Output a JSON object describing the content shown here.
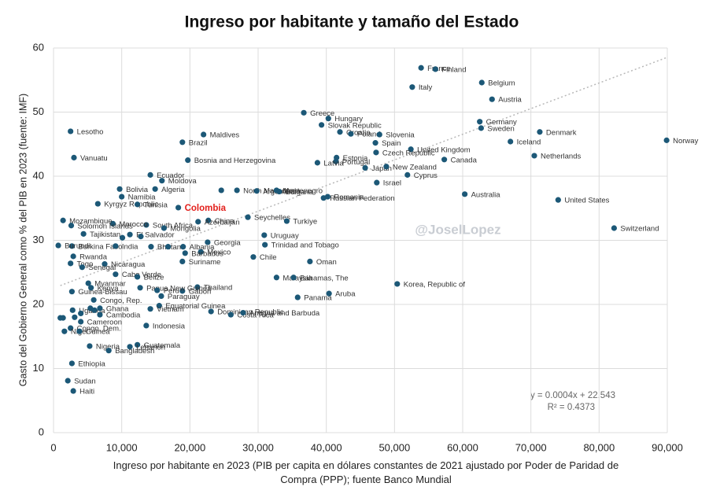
{
  "chart_data": {
    "type": "scatter",
    "title": "Ingreso por habitante y tamaño del Estado",
    "x_label": "Ingreso por habitante en 2023 (PIB per capita en dólares constantes de 2021 ajustado por Poder de Paridad de Compra (PPP); fuente Banco Mundial",
    "y_label": "Gasto del Gobierno General como % del PIB en 2023 (fuente: IMF)",
    "watermark": "@JoselLopez",
    "color": "#1c5877",
    "label_color": "#333333",
    "highlight": "Colombia",
    "highlight_color": "#e3201c",
    "grid": true,
    "xlim": [
      0,
      90000
    ],
    "ylim": [
      0,
      60
    ],
    "xticks": [
      0,
      {
        "value": 10000,
        "label": "10,000"
      },
      {
        "value": 20000,
        "label": "20,000"
      },
      {
        "value": 30000,
        "label": "30,000"
      },
      {
        "value": 40000,
        "label": "40,000"
      },
      {
        "value": 50000,
        "label": "50,000"
      },
      {
        "value": 60000,
        "label": "60,000"
      },
      {
        "value": 70000,
        "label": "70,000"
      },
      {
        "value": 80000,
        "label": "80,000"
      },
      {
        "value": 90000,
        "label": "90,000"
      }
    ],
    "yticks": [
      0,
      10,
      20,
      30,
      40,
      50,
      60
    ],
    "trendline": {
      "slope": 0.0004,
      "intercept": 22.543,
      "equation": "y = 0.0004x + 22.543",
      "r2": "R² = 0.4373"
    },
    "labels": [
      "France",
      "Finland",
      "Italy",
      "Belgium",
      "Austria",
      "Greece",
      "Hungary",
      "Slovak Republic",
      "Croatia",
      "Poland",
      "Slovenia",
      "Spain",
      "Germany",
      "Sweden",
      "Iceland",
      "Denmark",
      "Norway",
      "Netherlands",
      "United Kingdom",
      "Czech Republic",
      "Estonia",
      "Portugal",
      "Latvia",
      "Canada",
      "Japan",
      "New Zealand",
      "Cyprus",
      "Israel",
      "Australia",
      "United States",
      "Switzerland",
      "Romania",
      "Russian Federation",
      "North Macedonia",
      "Argentina",
      "Montenegro",
      "Bulgaria",
      "Seychelles",
      "Turkiye",
      "Uruguay",
      "Trinidad and Tobago",
      "Chile",
      "Oman",
      "Malaysia",
      "Bahamas, The",
      "Panama",
      "Aruba",
      "Korea, Republic of",
      "Dominican Republic",
      "Costa Rica",
      "Antigua and Barbuda",
      "Thailand",
      "Gabon",
      "Georgia",
      "Mexico",
      "Albania",
      "Barbados",
      "Suriname",
      "Brazil",
      "Maldives",
      "Bosnia and Herzegovina",
      "Ecuador",
      "Moldova",
      "Algeria",
      "Bolivia",
      "Namibia",
      "Kyrgyz Republic",
      "Tunisia",
      "Colombia",
      "China",
      "Azerbaijan",
      "South Africa",
      "Mongolia",
      "Morocco",
      "Mozambique",
      "Solomon Islands",
      "Tajikistan",
      "El Salvador",
      "Burkina Faso",
      "India",
      "Bhutan",
      "Lesotho",
      "Vanuatu",
      "Rwanda",
      "Togo",
      "Nicaragua",
      "Senegal",
      "Cabo Verde",
      "Belize",
      "Myanmar",
      "Kenya",
      "Papua New Guinea",
      "Peru",
      "Paraguay",
      "Congo, Rep.",
      "Equatorial Guinea",
      "Vietnam",
      "Uganda",
      "Cambodia",
      "Ghana",
      "Cameroon",
      "Indonesia",
      "Congo, Dem.",
      "Niger",
      "Guinea",
      "Nigeria",
      "Guatemala",
      "Lebanon",
      "Bangladesh",
      "Ethiopia",
      "Sudan",
      "Haiti",
      "Burundi",
      "Guinea-Bissau",
      null,
      null,
      null,
      null,
      null,
      null,
      null,
      null,
      null,
      null
    ],
    "x": [
      53900,
      56000,
      52600,
      62800,
      64300,
      36700,
      40300,
      39300,
      42000,
      43600,
      47800,
      47200,
      62500,
      62700,
      67000,
      71300,
      89900,
      70500,
      52400,
      47300,
      41500,
      41400,
      38700,
      57300,
      45700,
      48800,
      51900,
      47400,
      60300,
      74000,
      82200,
      40200,
      39600,
      26900,
      29800,
      32700,
      33100,
      28500,
      34200,
      30900,
      31000,
      29300,
      37600,
      32700,
      35200,
      35800,
      40400,
      50400,
      23100,
      26000,
      27800,
      21100,
      18900,
      22600,
      21600,
      19000,
      19300,
      18900,
      18900,
      22000,
      19700,
      14200,
      15900,
      14900,
      9700,
      10000,
      6500,
      12300,
      18300,
      22700,
      21200,
      13600,
      16200,
      8700,
      1400,
      2600,
      4400,
      11200,
      2700,
      9100,
      14300,
      2500,
      3000,
      2900,
      2500,
      7500,
      4200,
      9100,
      12300,
      5100,
      5500,
      12700,
      15200,
      15800,
      5900,
      15500,
      14200,
      2800,
      6800,
      6800,
      4000,
      13600,
      2500,
      1600,
      3800,
      5300,
      12300,
      11200,
      8100,
      2700,
      2100,
      2900,
      700,
      2700,
      1000,
      1400,
      3100,
      4000,
      5400,
      6000,
      10100,
      12800,
      16800,
      24600
    ],
    "values": [
      56.9,
      56.7,
      53.9,
      54.6,
      52.0,
      49.9,
      49.0,
      48.0,
      46.9,
      46.6,
      46.5,
      45.2,
      48.5,
      47.5,
      45.4,
      46.9,
      45.6,
      43.2,
      44.2,
      43.7,
      42.9,
      42.3,
      42.1,
      42.6,
      41.3,
      41.5,
      40.2,
      39.0,
      37.2,
      36.3,
      31.9,
      36.8,
      36.6,
      37.8,
      37.7,
      37.8,
      37.6,
      33.6,
      33.0,
      30.8,
      29.3,
      27.4,
      26.7,
      24.2,
      24.2,
      21.1,
      21.7,
      23.2,
      18.9,
      18.4,
      18.7,
      22.7,
      22.1,
      29.7,
      28.2,
      29.0,
      28.0,
      26.7,
      45.3,
      46.5,
      42.5,
      40.2,
      39.3,
      38.0,
      38.0,
      36.8,
      35.7,
      35.6,
      35.1,
      33.1,
      32.9,
      32.4,
      31.9,
      32.6,
      33.1,
      32.3,
      31.0,
      30.9,
      29.1,
      29.1,
      29.0,
      47.0,
      42.9,
      27.5,
      26.4,
      26.3,
      25.8,
      24.7,
      24.3,
      23.3,
      22.6,
      22.6,
      22.2,
      21.3,
      20.7,
      19.8,
      19.3,
      19.1,
      18.4,
      19.4,
      17.3,
      16.7,
      16.3,
      15.8,
      15.8,
      13.5,
      13.7,
      13.4,
      12.8,
      10.8,
      8.1,
      6.5,
      29.2,
      22.0,
      17.9,
      17.9,
      18.0,
      18.6,
      19.4,
      19.1,
      30.4,
      30.6,
      29.0,
      37.8
    ]
  }
}
